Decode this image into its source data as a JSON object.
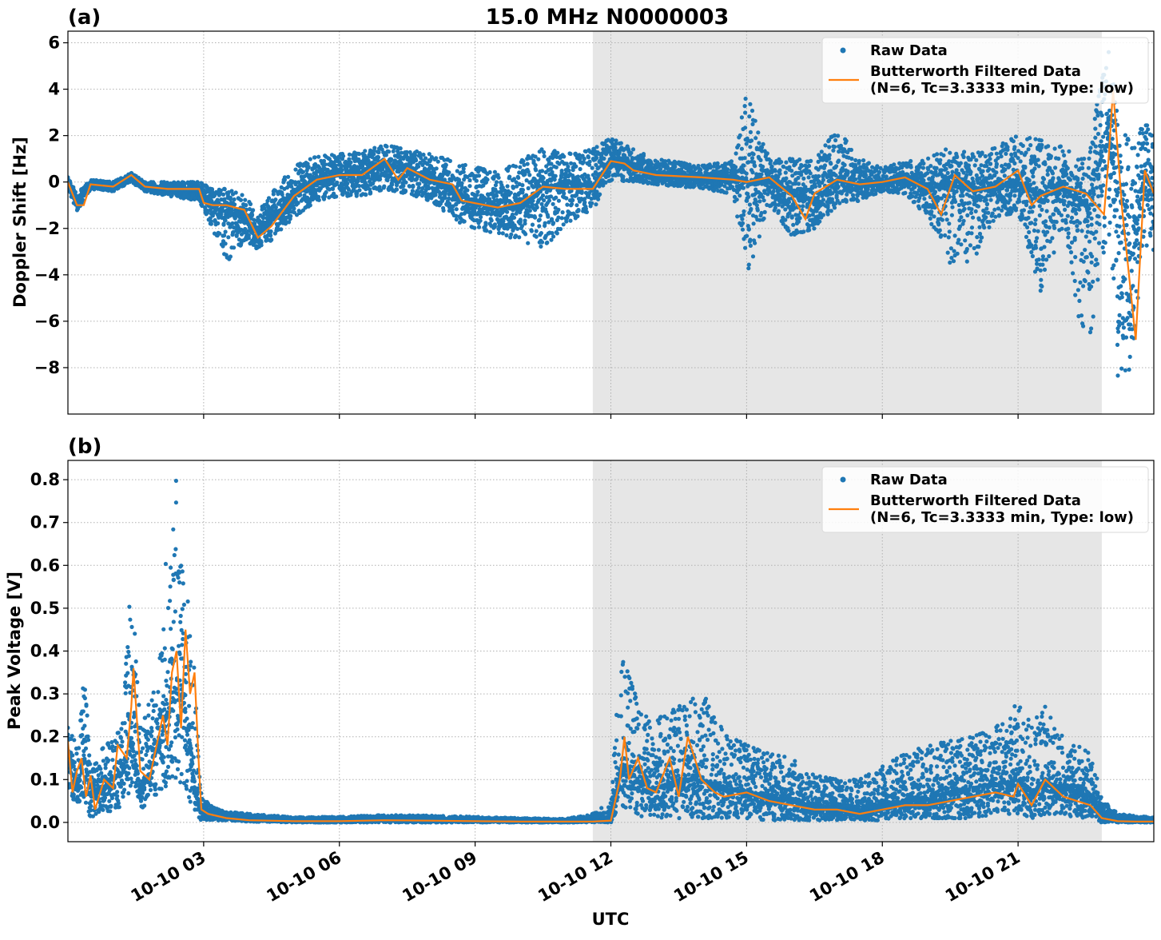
{
  "figure_title": "15.0 MHz N0000003",
  "xlabel": "UTC",
  "colors": {
    "raw": "#1f77b4",
    "filtered": "#ff7f0e",
    "night_shading": "#e6e6e6",
    "grid": "#b0b0b0"
  },
  "legend": {
    "raw_label": "Raw Data",
    "filtered_label_line1": "Butterworth Filtered Data",
    "filtered_label_line2": "(N=6, Tc=3.3333 min, Type: low)"
  },
  "chart_data": [
    {
      "type": "scatter",
      "panel_label": "(a)",
      "ylabel": "Doppler Shift [Hz]",
      "x_unit": "hours UTC on 10-10",
      "xlim": [
        0.0,
        24.0
      ],
      "ylim": [
        -10.0,
        6.5
      ],
      "x_ticks": [
        3,
        6,
        9,
        12,
        15,
        18,
        21
      ],
      "x_tick_labels": [
        "10-10 03",
        "10-10 06",
        "10-10 09",
        "10-10 12",
        "10-10 15",
        "10-10 18",
        "10-10 21"
      ],
      "y_ticks": [
        -8,
        -6,
        -4,
        -2,
        0,
        2,
        4,
        6
      ],
      "y_tick_labels": [
        "−8",
        "−6",
        "−4",
        "−2",
        "0",
        "2",
        "4",
        "6"
      ],
      "grid": true,
      "legend_position": "top-right",
      "shaded_x_range": [
        11.6,
        22.85
      ],
      "series": [
        {
          "name": "Raw Data",
          "style": "points",
          "x": [
            0.0,
            0.2,
            0.5,
            1.0,
            1.4,
            1.7,
            2.2,
            2.9,
            3.2,
            3.5,
            3.9,
            4.2,
            4.5,
            5.0,
            5.5,
            6.0,
            6.5,
            7.0,
            7.5,
            8.0,
            8.7,
            9.5,
            10.0,
            10.5,
            11.0,
            11.6,
            12.0,
            12.5,
            13.0,
            14.0,
            14.7,
            15.0,
            15.5,
            16.0,
            16.5,
            17.0,
            17.5,
            18.0,
            18.5,
            19.0,
            19.5,
            20.0,
            20.5,
            21.0,
            21.5,
            22.0,
            22.5,
            23.0,
            23.2,
            23.5,
            23.8,
            24.0
          ],
          "y_center": [
            0.0,
            -0.9,
            -0.1,
            -0.2,
            0.3,
            -0.2,
            -0.3,
            -0.4,
            -1.1,
            -1.3,
            -1.5,
            -2.2,
            -1.6,
            -0.5,
            0.1,
            0.3,
            0.4,
            0.8,
            0.5,
            0.2,
            -0.6,
            -1.2,
            -1.0,
            -0.3,
            0.0,
            -0.2,
            1.0,
            0.6,
            0.3,
            0.2,
            0.2,
            0.0,
            0.1,
            -0.5,
            -0.8,
            0.1,
            -0.1,
            0.0,
            0.2,
            -0.3,
            -0.1,
            -0.4,
            -0.2,
            0.0,
            -0.6,
            -0.3,
            -1.0,
            2.0,
            -1.0,
            -3.5,
            0.5,
            -0.5
          ],
          "y_min": [
            -0.3,
            -1.3,
            -0.3,
            -0.4,
            0.0,
            -0.4,
            -0.6,
            -0.8,
            -2.0,
            -3.6,
            -2.5,
            -2.9,
            -2.5,
            -1.5,
            -0.8,
            -0.6,
            -0.6,
            -0.3,
            -0.5,
            -0.8,
            -1.8,
            -2.3,
            -2.5,
            -2.9,
            -1.8,
            -1.2,
            0.1,
            0.0,
            -0.1,
            -0.3,
            -0.5,
            -4.1,
            -1.0,
            -2.3,
            -2.0,
            -1.0,
            -0.8,
            -0.4,
            -0.5,
            -1.5,
            -3.5,
            -3.4,
            -1.5,
            -1.3,
            -4.7,
            -2.0,
            -7.6,
            -2.0,
            -9.2,
            -8.0,
            -2.5,
            -3.6
          ],
          "y_max": [
            0.2,
            -0.5,
            0.1,
            0.0,
            0.4,
            0.0,
            0.0,
            0.0,
            -0.3,
            -0.3,
            -0.6,
            -1.3,
            -0.5,
            0.7,
            1.1,
            1.2,
            1.3,
            1.6,
            1.4,
            1.2,
            0.8,
            0.4,
            0.9,
            1.5,
            1.2,
            1.4,
            1.9,
            1.4,
            1.0,
            0.7,
            0.9,
            3.8,
            1.0,
            1.0,
            0.9,
            2.3,
            1.0,
            0.6,
            0.9,
            1.0,
            1.5,
            1.2,
            1.5,
            2.0,
            1.8,
            1.5,
            1.0,
            5.8,
            3.0,
            1.5,
            2.6,
            2.0
          ]
        },
        {
          "name": "Butterworth Filtered Data",
          "style": "line",
          "x": [
            0.0,
            0.2,
            0.35,
            0.5,
            1.0,
            1.4,
            1.7,
            2.2,
            2.9,
            3.0,
            3.2,
            3.5,
            3.9,
            4.2,
            4.5,
            5.0,
            5.5,
            6.0,
            6.5,
            7.0,
            7.3,
            7.5,
            8.0,
            8.5,
            8.7,
            9.5,
            10.0,
            10.5,
            11.0,
            11.6,
            12.0,
            12.3,
            12.5,
            13.0,
            14.0,
            14.7,
            15.0,
            15.5,
            16.0,
            16.3,
            16.5,
            17.0,
            17.5,
            18.0,
            18.5,
            19.0,
            19.3,
            19.6,
            20.0,
            20.5,
            21.0,
            21.3,
            21.5,
            22.0,
            22.5,
            22.9,
            23.0,
            23.1,
            23.3,
            23.6,
            23.8,
            24.0
          ],
          "y": [
            0.0,
            -1.0,
            -1.0,
            -0.1,
            -0.2,
            0.3,
            -0.2,
            -0.3,
            -0.3,
            -0.9,
            -1.0,
            -1.0,
            -1.2,
            -2.4,
            -1.9,
            -0.6,
            0.1,
            0.3,
            0.3,
            1.0,
            0.1,
            0.6,
            0.1,
            -0.1,
            -0.8,
            -1.1,
            -0.9,
            -0.2,
            -0.3,
            -0.3,
            0.9,
            0.8,
            0.5,
            0.3,
            0.2,
            0.1,
            0.0,
            0.2,
            -0.6,
            -1.6,
            -0.5,
            0.1,
            -0.1,
            0.0,
            0.2,
            -0.3,
            -1.4,
            0.3,
            -0.4,
            -0.2,
            0.5,
            -1.0,
            -0.6,
            -0.2,
            -0.5,
            -1.4,
            1.0,
            4.0,
            -1.2,
            -6.8,
            0.5,
            -0.5
          ]
        }
      ]
    },
    {
      "type": "scatter",
      "panel_label": "(b)",
      "ylabel": "Peak Voltage [V]",
      "x_unit": "hours UTC on 10-10",
      "xlim": [
        0.0,
        24.0
      ],
      "ylim": [
        -0.045,
        0.845
      ],
      "x_ticks": [
        3,
        6,
        9,
        12,
        15,
        18,
        21
      ],
      "x_tick_labels": [
        "10-10 03",
        "10-10 06",
        "10-10 09",
        "10-10 12",
        "10-10 15",
        "10-10 18",
        "10-10 21"
      ],
      "y_ticks": [
        0.0,
        0.1,
        0.2,
        0.3,
        0.4,
        0.5,
        0.6,
        0.7,
        0.8
      ],
      "y_tick_labels": [
        "0.0",
        "0.1",
        "0.2",
        "0.3",
        "0.4",
        "0.5",
        "0.6",
        "0.7",
        "0.8"
      ],
      "grid": true,
      "legend_position": "top-right",
      "shaded_x_range": [
        11.6,
        22.85
      ],
      "series": [
        {
          "name": "Raw Data",
          "style": "points",
          "x": [
            0.0,
            0.2,
            0.35,
            0.5,
            0.8,
            1.0,
            1.2,
            1.4,
            1.6,
            1.8,
            2.0,
            2.2,
            2.4,
            2.6,
            2.8,
            2.95,
            3.2,
            3.5,
            4.0,
            5.0,
            6.0,
            7.0,
            8.0,
            9.0,
            10.0,
            11.0,
            11.6,
            12.0,
            12.25,
            12.4,
            12.7,
            13.0,
            13.5,
            14.0,
            14.5,
            15.0,
            15.5,
            16.0,
            16.5,
            17.0,
            17.5,
            18.0,
            18.5,
            19.0,
            19.5,
            20.0,
            20.5,
            21.0,
            21.3,
            21.6,
            22.0,
            22.3,
            22.6,
            22.85,
            23.2,
            23.6,
            24.0
          ],
          "y_center": [
            0.15,
            0.08,
            0.16,
            0.07,
            0.08,
            0.1,
            0.12,
            0.2,
            0.08,
            0.12,
            0.18,
            0.25,
            0.3,
            0.3,
            0.08,
            0.03,
            0.02,
            0.015,
            0.008,
            0.005,
            0.005,
            0.008,
            0.007,
            0.006,
            0.004,
            0.004,
            0.005,
            0.008,
            0.15,
            0.12,
            0.09,
            0.08,
            0.1,
            0.1,
            0.08,
            0.07,
            0.06,
            0.05,
            0.04,
            0.035,
            0.03,
            0.04,
            0.05,
            0.06,
            0.07,
            0.08,
            0.09,
            0.1,
            0.07,
            0.09,
            0.08,
            0.07,
            0.06,
            0.02,
            0.005,
            0.004,
            0.004
          ],
          "y_min": [
            0.07,
            0.04,
            0.06,
            0.01,
            0.03,
            0.02,
            0.04,
            0.08,
            0.03,
            0.05,
            0.07,
            0.08,
            0.1,
            0.08,
            0.02,
            0.005,
            0.005,
            0.004,
            0.002,
            0.0,
            0.0,
            0.0,
            0.0,
            0.0,
            0.0,
            0.0,
            0.0,
            0.0,
            0.04,
            0.03,
            0.01,
            0.01,
            0.01,
            0.01,
            0.01,
            0.01,
            0.005,
            0.005,
            0.005,
            0.005,
            0.005,
            0.005,
            0.01,
            0.01,
            0.01,
            0.01,
            0.02,
            0.02,
            0.01,
            0.02,
            0.02,
            0.01,
            0.01,
            0.0,
            0.0,
            0.0,
            0.0
          ],
          "y_max": [
            0.23,
            0.18,
            0.38,
            0.12,
            0.18,
            0.2,
            0.22,
            0.58,
            0.22,
            0.28,
            0.33,
            0.67,
            0.81,
            0.63,
            0.35,
            0.06,
            0.035,
            0.025,
            0.02,
            0.012,
            0.013,
            0.017,
            0.016,
            0.013,
            0.01,
            0.008,
            0.02,
            0.05,
            0.46,
            0.34,
            0.25,
            0.24,
            0.27,
            0.31,
            0.21,
            0.18,
            0.16,
            0.15,
            0.11,
            0.1,
            0.1,
            0.13,
            0.16,
            0.18,
            0.19,
            0.2,
            0.22,
            0.28,
            0.23,
            0.27,
            0.2,
            0.18,
            0.16,
            0.06,
            0.02,
            0.015,
            0.012
          ]
        },
        {
          "name": "Butterworth Filtered Data",
          "style": "line",
          "x": [
            0.0,
            0.1,
            0.2,
            0.3,
            0.4,
            0.5,
            0.6,
            0.8,
            1.0,
            1.1,
            1.3,
            1.4,
            1.45,
            1.6,
            1.8,
            2.0,
            2.1,
            2.2,
            2.3,
            2.4,
            2.5,
            2.6,
            2.7,
            2.8,
            2.9,
            2.95,
            3.1,
            3.5,
            4.0,
            5.0,
            6.0,
            7.0,
            8.0,
            9.0,
            10.0,
            11.0,
            11.6,
            12.0,
            12.2,
            12.3,
            12.4,
            12.6,
            12.8,
            13.0,
            13.3,
            13.5,
            13.7,
            14.0,
            14.3,
            14.5,
            15.0,
            15.5,
            16.0,
            16.5,
            17.0,
            17.5,
            18.0,
            18.5,
            19.0,
            19.5,
            20.0,
            20.5,
            20.9,
            21.0,
            21.3,
            21.6,
            22.0,
            22.3,
            22.6,
            22.85,
            23.2,
            23.6,
            24.0
          ],
          "y": [
            0.19,
            0.07,
            0.12,
            0.15,
            0.06,
            0.11,
            0.03,
            0.1,
            0.08,
            0.18,
            0.15,
            0.27,
            0.36,
            0.12,
            0.1,
            0.2,
            0.25,
            0.18,
            0.35,
            0.4,
            0.22,
            0.45,
            0.3,
            0.35,
            0.12,
            0.03,
            0.02,
            0.01,
            0.005,
            0.003,
            0.003,
            0.005,
            0.004,
            0.003,
            0.002,
            0.002,
            0.002,
            0.004,
            0.1,
            0.2,
            0.1,
            0.15,
            0.08,
            0.07,
            0.15,
            0.06,
            0.2,
            0.1,
            0.07,
            0.06,
            0.07,
            0.05,
            0.04,
            0.03,
            0.03,
            0.02,
            0.03,
            0.04,
            0.04,
            0.05,
            0.06,
            0.07,
            0.06,
            0.09,
            0.04,
            0.1,
            0.06,
            0.05,
            0.04,
            0.01,
            0.003,
            0.002,
            0.002
          ]
        }
      ]
    }
  ]
}
